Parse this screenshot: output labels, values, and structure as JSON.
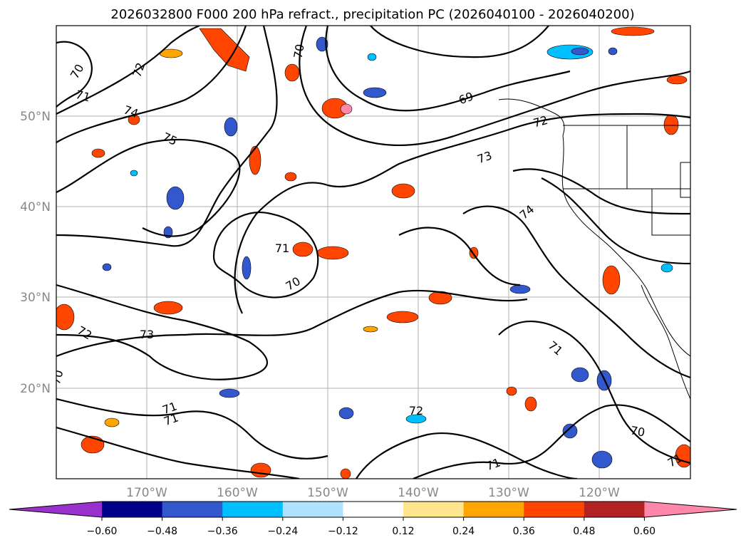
{
  "title": "2026032800 F000 200 hPa refract., precipitation PC (2026040100 - 2026040200)",
  "lat_labels": [
    "50°N",
    "40°N",
    "30°N",
    "20°N"
  ],
  "lon_labels": [
    "170°W",
    "160°W",
    "150°W",
    "140°W",
    "130°W",
    "120°W"
  ],
  "contour_labels": [
    "70",
    "72",
    "71",
    "74",
    "75",
    "70",
    "69",
    "72",
    "73",
    "74",
    "71",
    "70",
    "72",
    "73",
    "70",
    "71",
    "71",
    "72",
    "71",
    "70",
    "71",
    "71"
  ],
  "colorbar": {
    "ticks": [
      "-0.60",
      "-0.48",
      "-0.36",
      "-0.24",
      "-0.12",
      "0.12",
      "0.24",
      "0.36",
      "0.48",
      "0.60"
    ],
    "colors": [
      "#9932cc",
      "#00008b",
      "#3357cc",
      "#00bfff",
      "#b0e2ff",
      "#ffffff",
      "#ffe68c",
      "#ffa500",
      "#ff4500",
      "#b22222",
      "#ff88aa"
    ]
  },
  "colors": {
    "contour": "#000000",
    "grid": "#b0b0b0",
    "positive_anomaly": "#ff4500",
    "negative_anomaly": "#3357cc"
  }
}
